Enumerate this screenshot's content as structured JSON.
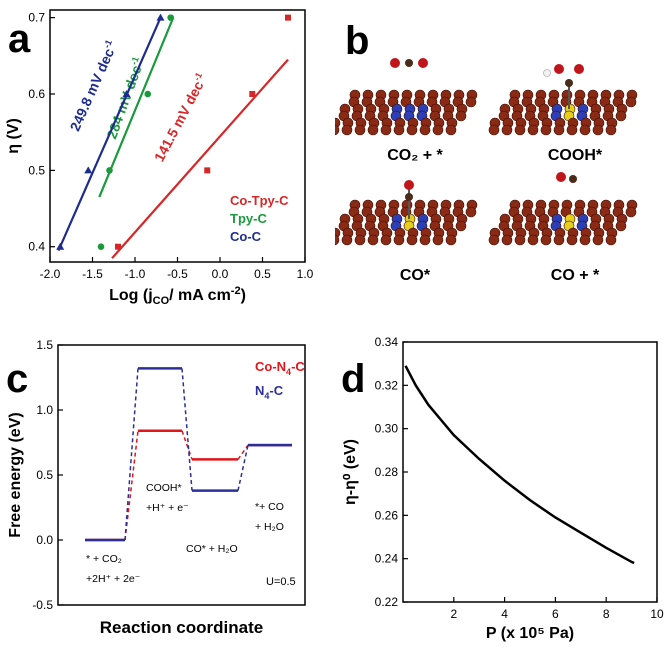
{
  "chart_data": [
    {
      "panel": "a",
      "type": "scatter",
      "xlabel_main": "Log (j",
      "xlabel_sub": "CO",
      "xlabel_tail": "/ mA cm",
      "xlabel_sup": "-2",
      "xlabel_close": ")",
      "ylabel": "η (V)",
      "xlim": [
        -2.0,
        1.0
      ],
      "ylim": [
        0.38,
        0.71
      ],
      "xticks": [
        "-2.0",
        "-1.5",
        "-1.0",
        "-0.5",
        "0.0",
        "0.5",
        "1.0"
      ],
      "xtick_values": [
        -2.0,
        -1.5,
        -1.0,
        -0.5,
        0.0,
        0.5,
        1.0
      ],
      "yticks": [
        "0.4",
        "0.5",
        "0.6",
        "0.7"
      ],
      "ytick_values": [
        0.4,
        0.5,
        0.6,
        0.7
      ],
      "series": [
        {
          "name": "Co-Tpy-C",
          "color": "#d62728",
          "marker": "square",
          "x": [
            -1.2,
            -0.15,
            0.38,
            0.8
          ],
          "y": [
            0.4,
            0.5,
            0.6,
            0.7
          ],
          "fit": {
            "x": [
              -1.27,
              0.8
            ],
            "y": [
              0.385,
              0.645
            ]
          },
          "slope_label": "141.5 mV dec",
          "slope_sup": "-1"
        },
        {
          "name": "Tpy-C",
          "color": "#1a9a3c",
          "marker": "circle",
          "x": [
            -1.4,
            -1.3,
            -0.85,
            -0.58
          ],
          "y": [
            0.4,
            0.5,
            0.6,
            0.7
          ],
          "fit": {
            "x": [
              -1.42,
              -0.55
            ],
            "y": [
              0.465,
              0.7
            ]
          },
          "slope_label": "284 mV dec",
          "slope_sup": "-1"
        },
        {
          "name": "Co-C",
          "color": "#1f2c8f",
          "marker": "triangle",
          "x": [
            -1.88,
            -1.55,
            -1.1,
            -0.7
          ],
          "y": [
            0.4,
            0.5,
            0.6,
            0.7
          ],
          "fit": {
            "x": [
              -1.9,
              -0.7
            ],
            "y": [
              0.395,
              0.7
            ]
          },
          "slope_label": "249.8 mV dec",
          "slope_sup": "-1"
        }
      ]
    },
    {
      "panel": "c",
      "type": "line",
      "ylabel": "Free energy (eV)",
      "xlabel": "Reaction coordinate",
      "ylim": [
        -0.5,
        1.5
      ],
      "yticks": [
        "-0.5",
        "0.0",
        "0.5",
        "1.0",
        "1.5"
      ],
      "ytick_values": [
        -0.5,
        0.0,
        0.5,
        1.0,
        1.5
      ],
      "series": [
        {
          "name": "Co-N4-C",
          "label_main": "Co-N",
          "label_sub": "4",
          "label_tail": "-C",
          "color": "#e0161b",
          "values": [
            0.0,
            0.84,
            0.62,
            0.73
          ]
        },
        {
          "name": "N4-C",
          "label_main": "N",
          "label_sub": "4",
          "label_tail": "-C",
          "color": "#2b2f9a",
          "values": [
            0.0,
            1.32,
            0.38,
            0.73
          ]
        }
      ],
      "state_labels": [
        {
          "lines": [
            "* + CO₂",
            "+2H⁺ + 2e⁻"
          ]
        },
        {
          "lines": [
            "COOH*",
            "+H⁺ + e⁻"
          ]
        },
        {
          "lines": [
            "CO* + H₂O"
          ]
        },
        {
          "lines": [
            "*+ CO",
            "+ H₂O"
          ]
        }
      ],
      "annotation": "U=0.5"
    },
    {
      "panel": "d",
      "type": "line",
      "ylabel": "η-η⁰ (eV)",
      "xlabel": "P (x 10⁵ Pa)",
      "xlim": [
        0,
        10
      ],
      "ylim": [
        0.22,
        0.34
      ],
      "xticks": [
        "2",
        "4",
        "6",
        "8",
        "10"
      ],
      "xtick_values": [
        2,
        4,
        6,
        8,
        10
      ],
      "yticks": [
        "0.22",
        "0.24",
        "0.26",
        "0.28",
        "0.30",
        "0.32",
        "0.34"
      ],
      "ytick_values": [
        0.22,
        0.24,
        0.26,
        0.28,
        0.3,
        0.32,
        0.34
      ],
      "x": [
        0.1,
        0.5,
        1,
        1.5,
        2,
        3,
        4,
        5,
        6,
        7,
        8,
        9,
        9.1
      ],
      "y": [
        0.329,
        0.32,
        0.311,
        0.304,
        0.297,
        0.286,
        0.276,
        0.267,
        0.259,
        0.252,
        0.245,
        0.2385,
        0.238
      ],
      "color": "#000000"
    }
  ],
  "panel_b": {
    "states": [
      {
        "label": "CO₂ + *"
      },
      {
        "label": "COOH*"
      },
      {
        "label": "CO*"
      },
      {
        "label": "CO + *"
      }
    ],
    "colors": {
      "carbon": "#8a2a14",
      "nitrogen": "#2b3fb8",
      "cobalt": "#e8d01a",
      "oxygen": "#c0161b",
      "hydrogen": "#f2f2f2"
    }
  },
  "panel_letters": [
    "a",
    "b",
    "c",
    "d"
  ]
}
